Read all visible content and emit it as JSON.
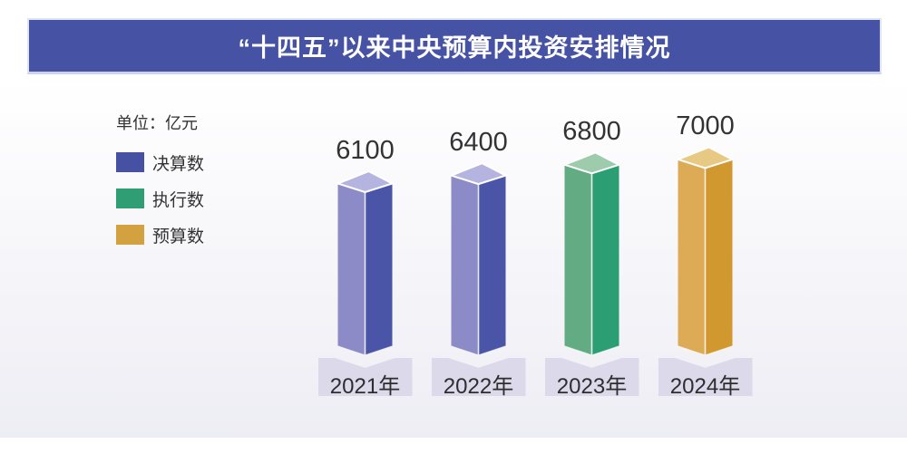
{
  "header": {
    "title": "“十四五”以来中央预算内投资安排情况",
    "banner_color": "#4652a3"
  },
  "chart": {
    "unit_label": "单位：亿元",
    "legend": [
      {
        "label": "决算数",
        "color": "#4751a3"
      },
      {
        "label": "执行数",
        "color": "#2f9e74"
      },
      {
        "label": "预算数",
        "color": "#d3a13f"
      }
    ]
  },
  "chart_data": {
    "type": "bar",
    "title": "“十四五”以来中央预算内投资安排情况",
    "unit": "亿元",
    "categories": [
      "2021年",
      "2022年",
      "2023年",
      "2024年"
    ],
    "values": [
      6100,
      6400,
      6800,
      7000
    ],
    "value_labels": [
      "6100",
      "6400",
      "6800",
      "7000"
    ],
    "series_by_bar": [
      "决算数",
      "决算数",
      "执行数",
      "预算数"
    ],
    "legend_position": "upper-left",
    "grid": false,
    "axes_visible": false,
    "bar_style": "3d-column",
    "bar_colors": [
      {
        "top": "#b5b3df",
        "left": "#8c8bc7",
        "right": "#4a55a8"
      },
      {
        "top": "#b5b3df",
        "left": "#8c8bc7",
        "right": "#4a55a8"
      },
      {
        "top": "#9ecbab",
        "left": "#63ab83",
        "right": "#2b9e74"
      },
      {
        "top": "#e7c983",
        "left": "#ddab55",
        "right": "#d0982f"
      }
    ],
    "category_plate_color": "#dbd9ea"
  }
}
